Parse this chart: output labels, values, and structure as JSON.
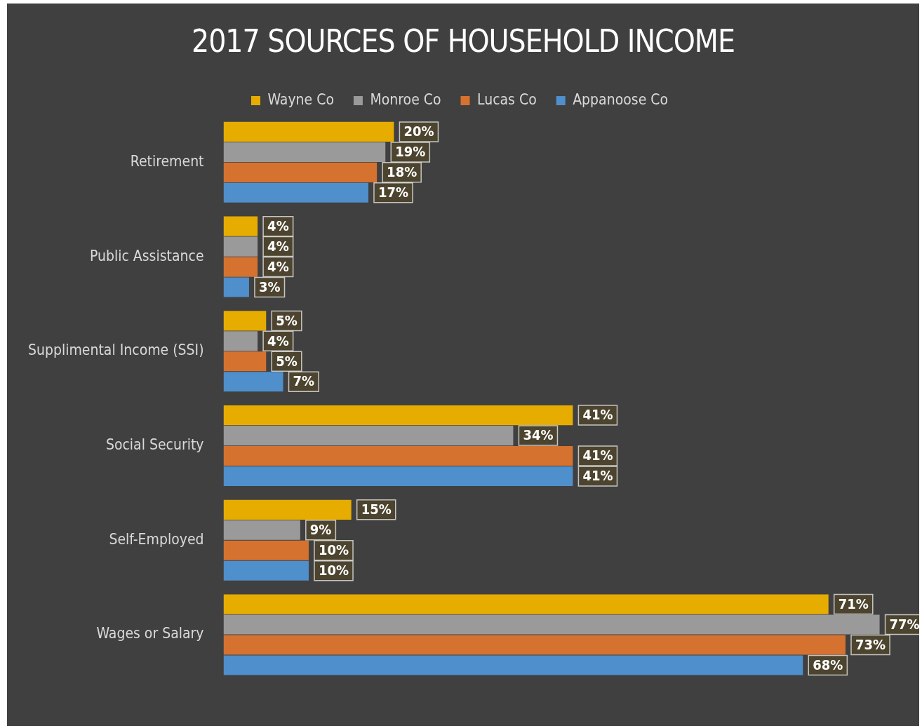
{
  "chart_data": {
    "type": "bar",
    "orientation": "horizontal",
    "title": "2017 SOURCES OF HOUSEHOLD INCOME",
    "legend": "top",
    "categories": [
      "Retirement",
      "Public Assistance",
      "Supplimental Income (SSI)",
      "Social Security",
      "Self-Employed",
      "Wages or Salary"
    ],
    "series": [
      {
        "name": "Wayne Co",
        "color": "#e6ac00",
        "values": [
          20,
          4,
          5,
          41,
          15,
          71
        ],
        "value_labels": [
          "20%",
          "4%",
          "5%",
          "41%",
          "15%",
          "71%"
        ]
      },
      {
        "name": "Monroe Co",
        "color": "#9a9a9a",
        "values": [
          19,
          4,
          4,
          34,
          9,
          77
        ],
        "value_labels": [
          "19%",
          "4%",
          "4%",
          "34%",
          "9%",
          "77%"
        ]
      },
      {
        "name": "Lucas Co",
        "color": "#d6722f",
        "values": [
          18,
          4,
          5,
          41,
          10,
          73
        ],
        "value_labels": [
          "18%",
          "4%",
          "5%",
          "41%",
          "10%",
          "73%"
        ]
      },
      {
        "name": "Appanoose Co",
        "color": "#4f8fcb",
        "values": [
          17,
          3,
          7,
          41,
          10,
          68
        ],
        "value_labels": [
          "17%",
          "3%",
          "7%",
          "41%",
          "10%",
          "68%"
        ]
      }
    ]
  }
}
